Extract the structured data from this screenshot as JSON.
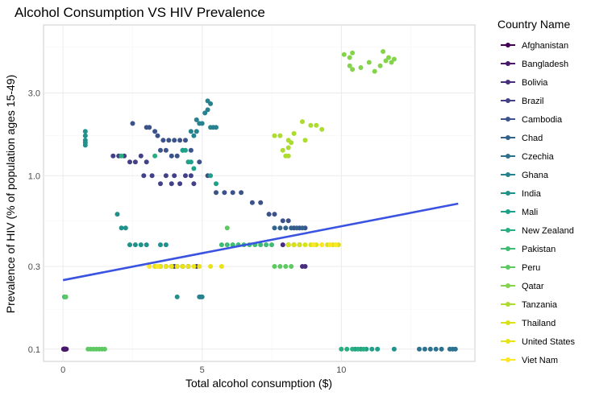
{
  "chart_data": {
    "type": "scatter",
    "title": "Alcohol Consumption VS HIV Prevalence",
    "xlabel": "Total alcohol consumption ($)",
    "ylabel": "Prevalence of HIV (% of population ages 15-49)",
    "x_ticks": [
      "0",
      "5",
      "10"
    ],
    "y_ticks": [
      "0.1",
      "0.3",
      "1.0",
      "3.0"
    ],
    "xlim": [
      -0.7,
      14.8
    ],
    "ylim": [
      0.085,
      7.4
    ],
    "y_scale": "log10",
    "grid": true,
    "legend": {
      "title": "Country Name",
      "placement": "right"
    },
    "trend_line": {
      "method": "linear fit on log scale",
      "x": [
        0,
        14.2
      ],
      "y": [
        0.25,
        0.69
      ],
      "color": "#3a53e0"
    },
    "series": [
      {
        "name": "Afghanistan",
        "color": "#440154",
        "points": [
          [
            0.02,
            0.1
          ],
          [
            0.03,
            0.1
          ],
          [
            0.04,
            0.1
          ],
          [
            0.05,
            0.1
          ],
          [
            0.06,
            0.1
          ],
          [
            0.07,
            0.1
          ],
          [
            0.08,
            0.1
          ],
          [
            0.1,
            0.1
          ]
        ]
      },
      {
        "name": "Bangladesh",
        "color": "#48186a",
        "points": [
          [
            0.02,
            0.1
          ],
          [
            0.04,
            0.1
          ],
          [
            0.06,
            0.1
          ],
          [
            0.08,
            0.1
          ],
          [
            0.1,
            0.1
          ],
          [
            0.12,
            0.1
          ]
        ]
      },
      {
        "name": "Bolivia",
        "color": "#472d7b",
        "points": [
          [
            3.3,
            0.3
          ],
          [
            3.5,
            0.3
          ],
          [
            3.7,
            0.3
          ],
          [
            3.9,
            0.3
          ],
          [
            4.0,
            0.3
          ],
          [
            4.3,
            0.3
          ],
          [
            4.5,
            0.3
          ],
          [
            4.8,
            0.3
          ],
          [
            7.9,
            0.4
          ],
          [
            8.1,
            0.4
          ],
          [
            8.3,
            0.4
          ],
          [
            8.5,
            0.4
          ],
          [
            8.6,
            0.3
          ],
          [
            8.7,
            0.3
          ]
        ]
      },
      {
        "name": "Brazil",
        "color": "#424086",
        "points": [
          [
            1.8,
            1.3
          ],
          [
            2.0,
            1.3
          ],
          [
            2.2,
            1.3
          ],
          [
            2.4,
            1.2
          ],
          [
            2.6,
            1.2
          ],
          [
            2.8,
            1.3
          ],
          [
            3.0,
            1.2
          ],
          [
            2.9,
            1.0
          ],
          [
            3.2,
            1.0
          ],
          [
            3.5,
            0.9
          ],
          [
            3.7,
            1.0
          ],
          [
            3.9,
            0.9
          ],
          [
            4.0,
            1.0
          ],
          [
            4.2,
            0.9
          ],
          [
            4.4,
            1.0
          ],
          [
            4.6,
            1.0
          ],
          [
            4.7,
            0.9
          ]
        ]
      },
      {
        "name": "Cambodia",
        "color": "#3b528b",
        "points": [
          [
            2.5,
            2.0
          ],
          [
            3.0,
            1.9
          ],
          [
            3.1,
            1.9
          ],
          [
            3.3,
            1.8
          ],
          [
            3.4,
            1.7
          ],
          [
            3.6,
            1.6
          ],
          [
            3.8,
            1.6
          ],
          [
            4.0,
            1.6
          ],
          [
            4.2,
            1.6
          ],
          [
            4.4,
            1.6
          ],
          [
            3.5,
            1.4
          ],
          [
            3.7,
            1.4
          ],
          [
            3.9,
            1.3
          ],
          [
            4.1,
            1.3
          ],
          [
            4.3,
            1.4
          ],
          [
            4.6,
            1.4
          ],
          [
            4.9,
            1.2
          ],
          [
            5.2,
            1.0
          ],
          [
            5.5,
            0.8
          ],
          [
            5.8,
            0.8
          ],
          [
            6.1,
            0.8
          ],
          [
            6.4,
            0.8
          ],
          [
            6.8,
            0.7
          ],
          [
            7.1,
            0.7
          ],
          [
            7.4,
            0.6
          ],
          [
            7.6,
            0.6
          ],
          [
            7.9,
            0.55
          ],
          [
            8.1,
            0.55
          ],
          [
            8.3,
            0.5
          ],
          [
            8.5,
            0.5
          ],
          [
            8.7,
            0.5
          ]
        ]
      },
      {
        "name": "Chad",
        "color": "#33638d",
        "points": [
          [
            7.6,
            0.5
          ],
          [
            7.8,
            0.5
          ],
          [
            8.0,
            0.5
          ],
          [
            8.2,
            0.5
          ],
          [
            8.4,
            0.5
          ],
          [
            8.6,
            0.5
          ],
          [
            3.9,
            0.3
          ],
          [
            4.1,
            0.3
          ],
          [
            4.3,
            0.3
          ],
          [
            4.5,
            0.3
          ]
        ]
      },
      {
        "name": "Czechia",
        "color": "#2c728e",
        "points": [
          [
            12.8,
            0.1
          ],
          [
            13.0,
            0.1
          ],
          [
            13.2,
            0.1
          ],
          [
            13.4,
            0.1
          ],
          [
            13.6,
            0.1
          ],
          [
            13.9,
            0.1
          ],
          [
            14.0,
            0.1
          ],
          [
            14.1,
            0.1
          ]
        ]
      },
      {
        "name": "Ghana",
        "color": "#26828e",
        "points": [
          [
            4.8,
            2.1
          ],
          [
            4.9,
            2.0
          ],
          [
            5.0,
            2.0
          ],
          [
            5.1,
            2.3
          ],
          [
            5.2,
            2.4
          ],
          [
            5.3,
            2.6
          ],
          [
            5.2,
            2.7
          ],
          [
            4.6,
            1.8
          ],
          [
            4.8,
            1.8
          ],
          [
            4.7,
            1.7
          ],
          [
            5.3,
            1.9
          ],
          [
            5.4,
            1.9
          ],
          [
            5.5,
            1.9
          ],
          [
            4.9,
            0.2
          ],
          [
            4.95,
            0.2
          ],
          [
            5.0,
            0.2
          ]
        ]
      },
      {
        "name": "India",
        "color": "#21918c",
        "points": [
          [
            0.8,
            1.8
          ],
          [
            0.8,
            1.7
          ],
          [
            0.8,
            1.6
          ],
          [
            0.8,
            1.55
          ],
          [
            0.8,
            1.5
          ],
          [
            1.95,
            0.6
          ],
          [
            2.1,
            0.5
          ],
          [
            2.25,
            0.5
          ],
          [
            2.4,
            0.4
          ],
          [
            2.6,
            0.4
          ],
          [
            2.8,
            0.4
          ],
          [
            3.0,
            0.4
          ],
          [
            3.5,
            0.4
          ],
          [
            3.7,
            0.4
          ],
          [
            4.1,
            0.2
          ],
          [
            11.9,
            0.1
          ]
        ]
      },
      {
        "name": "Mali",
        "color": "#1fa088",
        "points": [
          [
            4.3,
            1.4
          ],
          [
            4.4,
            1.4
          ],
          [
            4.5,
            1.2
          ],
          [
            4.6,
            1.2
          ],
          [
            4.7,
            1.1
          ],
          [
            5.3,
            1.0
          ],
          [
            5.5,
            0.9
          ],
          [
            10.5,
            0.1
          ],
          [
            10.7,
            0.1
          ],
          [
            10.9,
            0.1
          ],
          [
            11.1,
            0.1
          ],
          [
            11.3,
            0.1
          ]
        ]
      },
      {
        "name": "New Zealand",
        "color": "#28ae80",
        "points": [
          [
            2.1,
            1.3
          ],
          [
            3.3,
            1.3
          ],
          [
            3.5,
            0.3
          ],
          [
            10.0,
            0.1
          ],
          [
            10.2,
            0.1
          ],
          [
            10.4,
            0.1
          ],
          [
            10.6,
            0.1
          ],
          [
            10.8,
            0.1
          ]
        ]
      },
      {
        "name": "Pakistan",
        "color": "#3fbc73",
        "points": [
          [
            5.7,
            0.4
          ],
          [
            5.9,
            0.4
          ],
          [
            6.1,
            0.4
          ],
          [
            6.3,
            0.4
          ],
          [
            6.5,
            0.4
          ],
          [
            6.7,
            0.4
          ],
          [
            6.9,
            0.4
          ],
          [
            7.1,
            0.4
          ],
          [
            7.3,
            0.4
          ],
          [
            7.5,
            0.4
          ],
          [
            0.05,
            0.2
          ],
          [
            0.1,
            0.2
          ]
        ]
      },
      {
        "name": "Peru",
        "color": "#5ec962",
        "points": [
          [
            0.1,
            0.2
          ],
          [
            0.9,
            0.1
          ],
          [
            1.0,
            0.1
          ],
          [
            1.1,
            0.1
          ],
          [
            1.2,
            0.1
          ],
          [
            1.3,
            0.1
          ],
          [
            1.4,
            0.1
          ],
          [
            1.5,
            0.1
          ],
          [
            7.6,
            0.3
          ],
          [
            7.8,
            0.3
          ],
          [
            8.0,
            0.3
          ],
          [
            8.2,
            0.3
          ],
          [
            5.9,
            0.5
          ]
        ]
      },
      {
        "name": "Qatar",
        "color": "#84d44b",
        "points": [
          [
            10.1,
            5.0
          ],
          [
            10.3,
            4.8
          ],
          [
            10.4,
            5.1
          ],
          [
            10.3,
            4.3
          ],
          [
            10.4,
            4.1
          ],
          [
            10.7,
            4.2
          ],
          [
            11.0,
            4.5
          ],
          [
            11.2,
            4.0
          ],
          [
            11.4,
            4.3
          ],
          [
            11.5,
            5.2
          ],
          [
            11.6,
            4.6
          ],
          [
            11.7,
            4.8
          ],
          [
            11.8,
            4.5
          ],
          [
            11.9,
            4.7
          ]
        ]
      },
      {
        "name": "Tanzania",
        "color": "#addc30",
        "points": [
          [
            7.6,
            1.7
          ],
          [
            7.8,
            1.7
          ],
          [
            7.9,
            1.4
          ],
          [
            8.0,
            1.3
          ],
          [
            8.1,
            1.3
          ],
          [
            8.1,
            1.6
          ],
          [
            8.2,
            1.55
          ],
          [
            8.1,
            1.45
          ],
          [
            8.3,
            1.75
          ],
          [
            8.6,
            2.05
          ],
          [
            8.9,
            1.95
          ],
          [
            9.1,
            1.95
          ],
          [
            9.3,
            1.85
          ],
          [
            8.7,
            1.6
          ]
        ]
      },
      {
        "name": "Thailand",
        "color": "#d8e219",
        "points": [
          [
            8.1,
            0.4
          ],
          [
            8.3,
            0.4
          ],
          [
            8.5,
            0.4
          ],
          [
            8.7,
            0.4
          ],
          [
            8.9,
            0.4
          ],
          [
            9.1,
            0.4
          ],
          [
            9.3,
            0.4
          ],
          [
            9.5,
            0.4
          ],
          [
            9.7,
            0.4
          ],
          [
            9.9,
            0.4
          ]
        ]
      },
      {
        "name": "United States",
        "color": "#e8e419",
        "points": [
          [
            3.3,
            0.3
          ],
          [
            3.5,
            0.3
          ],
          [
            3.7,
            0.3
          ],
          [
            3.9,
            0.3
          ],
          [
            4.1,
            0.3
          ],
          [
            4.3,
            0.3
          ],
          [
            4.5,
            0.3
          ],
          [
            4.7,
            0.3
          ],
          [
            4.9,
            0.3
          ],
          [
            5.3,
            0.3
          ],
          [
            5.7,
            0.3
          ]
        ]
      },
      {
        "name": "Viet Nam",
        "color": "#fde725",
        "points": [
          [
            3.1,
            0.3
          ],
          [
            3.4,
            0.3
          ],
          [
            9.0,
            0.4
          ],
          [
            9.3,
            0.4
          ],
          [
            9.6,
            0.4
          ],
          [
            9.8,
            0.4
          ]
        ]
      }
    ]
  }
}
